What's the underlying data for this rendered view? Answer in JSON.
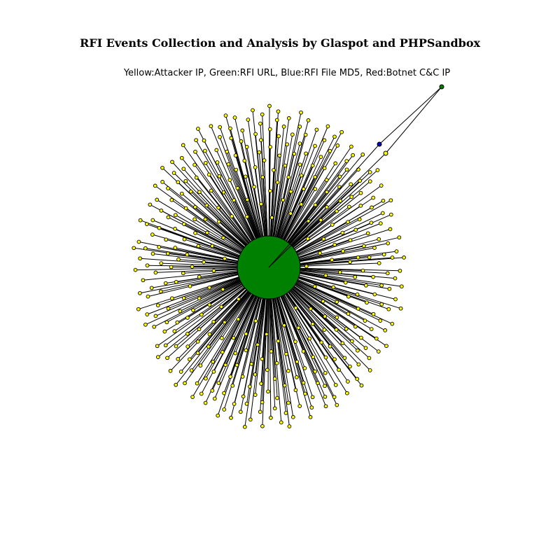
{
  "figure": {
    "title": "RFI Events Collection and Analysis by Glaspot and PHPSandbox",
    "subtitle": "Yellow:Attacker IP, Green:RFI URL, Blue:RFI File MD5, Red:Botnet C&C IP"
  },
  "colors": {
    "attacker_ip": "#ffff00",
    "rfi_url": "#008000",
    "rfi_file_md5": "#0000cc",
    "botnet_cc_ip": "#ff0000",
    "edge": "#000000"
  },
  "graph": {
    "layout": "radial star",
    "hub": {
      "kind": "rfi_url",
      "color": "#008000"
    },
    "attacker_ip_count": 420,
    "outlier_chain": [
      {
        "kind": "attacker_ip",
        "color": "#ffff00"
      },
      {
        "kind": "rfi_file_md5",
        "color": "#0000cc"
      },
      {
        "kind": "rfi_url",
        "color": "#008000"
      }
    ]
  }
}
